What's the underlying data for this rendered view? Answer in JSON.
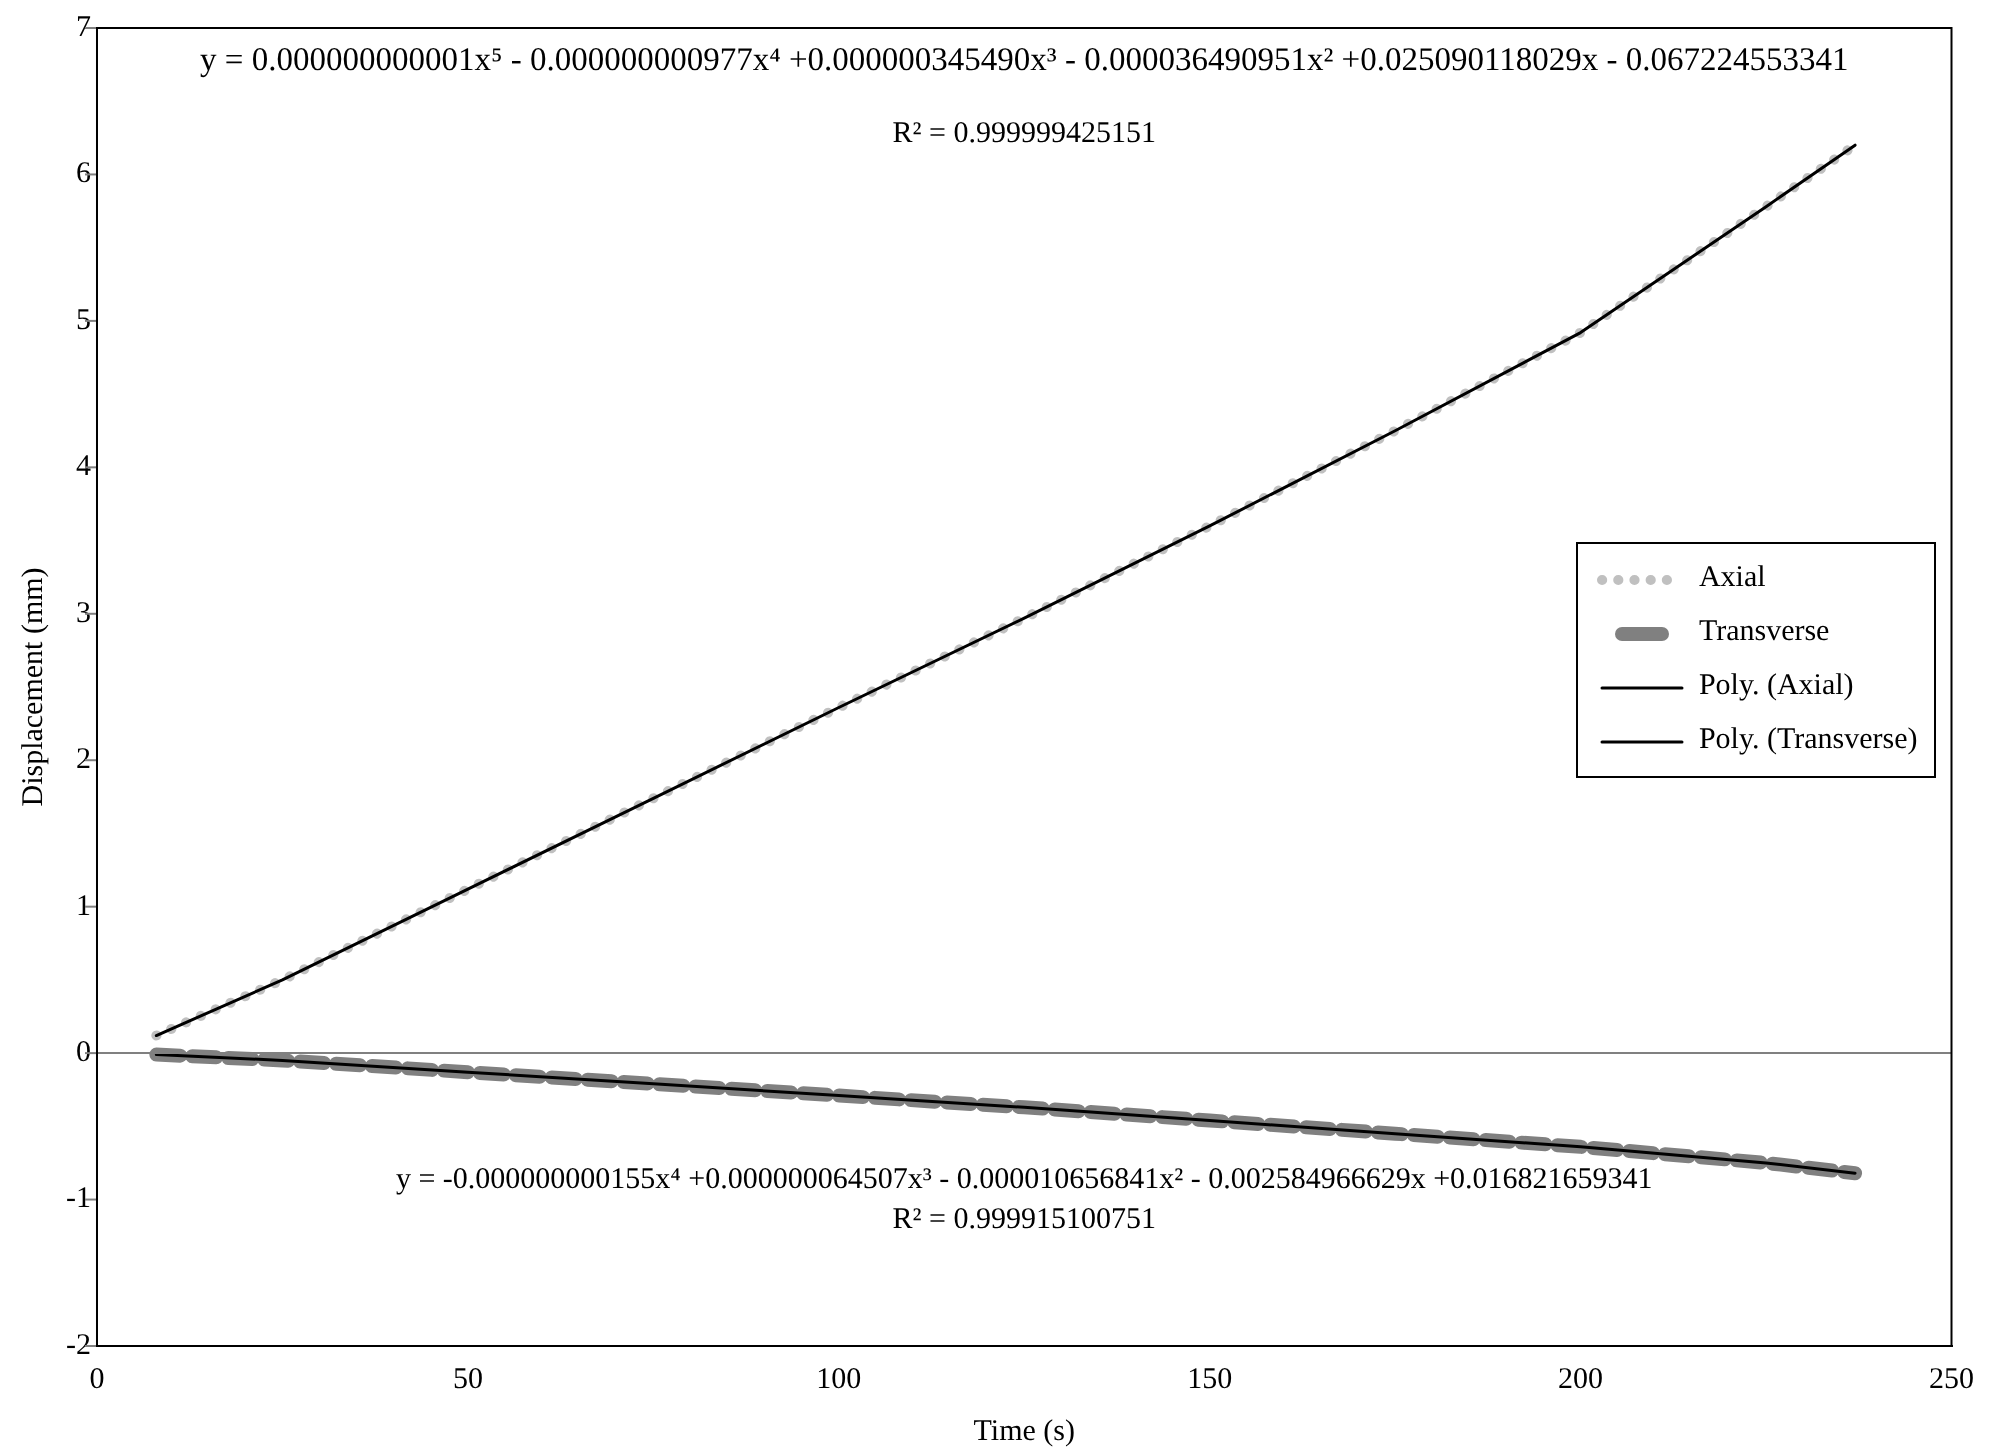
{
  "chart_data": {
    "type": "line",
    "xlabel": "Time (s)",
    "ylabel": "Displacement (mm)",
    "xlim": [
      0,
      250
    ],
    "xticks": [
      0,
      50,
      100,
      150,
      200,
      250
    ],
    "ylim": [
      -2,
      7
    ],
    "yticks": [
      -2,
      -1,
      0,
      1,
      2,
      3,
      4,
      5,
      6,
      7
    ],
    "grid": false,
    "legend": "right",
    "ref_lines": [
      {
        "axis": "y",
        "value": 0,
        "color": "#808080"
      }
    ],
    "series": [
      {
        "name": "Axial",
        "color": "#c0c0c0",
        "line_style": "dotted",
        "x": [
          8,
          25,
          50,
          75,
          100,
          125,
          150,
          175,
          200,
          225,
          237
        ],
        "values": [
          0.12,
          0.5,
          1.12,
          1.74,
          2.36,
          2.97,
          3.6,
          4.25,
          4.92,
          5.78,
          6.2
        ]
      },
      {
        "name": "Transverse",
        "color": "#808080",
        "line_style": "dashed",
        "x": [
          8,
          25,
          50,
          75,
          100,
          125,
          150,
          175,
          200,
          225,
          237
        ],
        "values": [
          -0.01,
          -0.05,
          -0.13,
          -0.21,
          -0.29,
          -0.37,
          -0.46,
          -0.55,
          -0.64,
          -0.75,
          -0.82
        ]
      },
      {
        "name": "Poly. (Axial)",
        "color": "#000000",
        "line_style": "solid",
        "x": [
          8,
          25,
          50,
          75,
          100,
          125,
          150,
          175,
          200,
          225,
          237
        ],
        "values": [
          0.12,
          0.5,
          1.12,
          1.74,
          2.36,
          2.97,
          3.6,
          4.25,
          4.92,
          5.78,
          6.2
        ]
      },
      {
        "name": "Poly. (Transverse)",
        "color": "#000000",
        "line_style": "solid",
        "x": [
          8,
          25,
          50,
          75,
          100,
          125,
          150,
          175,
          200,
          225,
          237
        ],
        "values": [
          -0.01,
          -0.05,
          -0.13,
          -0.21,
          -0.29,
          -0.37,
          -0.46,
          -0.55,
          -0.64,
          -0.75,
          -0.82
        ]
      }
    ],
    "annotations": [
      "y = 0.000000000001x⁵  - 0.000000000977x⁴  +0.000000345490x³  - 0.000036490951x²  +0.025090118029x  - 0.067224553341",
      "R² = 0.999999425151",
      "y = -0.000000000155x⁴  +0.000000064507x³  - 0.000010656841x²  - 0.002584966629x  +0.016821659341",
      "R² = 0.999915100751"
    ]
  }
}
